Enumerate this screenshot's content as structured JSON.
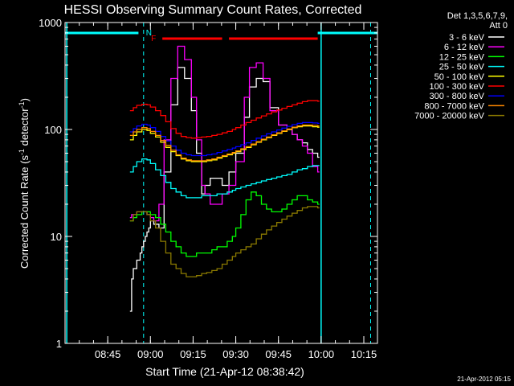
{
  "chart_data": {
    "type": "line",
    "title": "HESSI Observing Summary Count Rates, Corrected",
    "xlabel": "Start Time (21-Apr-12 08:38:42)",
    "ylabel_main": "Corrected Count Rate (s",
    "ylabel_sup1": "-1",
    "ylabel_mid": " detector",
    "ylabel_sup2": "-1",
    "ylabel_end": ")",
    "y_scale": "log",
    "ylim": [
      1,
      1000
    ],
    "xlim_minutes": [
      8.5,
      10.33
    ],
    "x_ticks": [
      {
        "t": 8.75,
        "label": "08:45"
      },
      {
        "t": 9.0,
        "label": "09:00"
      },
      {
        "t": 9.25,
        "label": "09:15"
      },
      {
        "t": 9.5,
        "label": "09:30"
      },
      {
        "t": 9.75,
        "label": "09:45"
      },
      {
        "t": 10.0,
        "label": "10:00"
      },
      {
        "t": 10.25,
        "label": "10:15"
      }
    ],
    "y_ticks": [
      {
        "v": 1,
        "label": "1"
      },
      {
        "v": 10,
        "label": "10"
      },
      {
        "v": 100,
        "label": "100"
      },
      {
        "v": 1000,
        "label": "1000"
      }
    ],
    "legend_header": [
      "Det 1,3,5,6,7,9,",
      "Att 0"
    ],
    "legend_position": "right",
    "series": [
      {
        "name": "3 - 6 keV",
        "color": "#ffffff",
        "t": [
          8.88,
          8.89,
          8.9,
          8.92,
          8.94,
          8.95,
          8.96,
          8.97,
          8.98,
          8.99,
          9.0,
          9.02,
          9.05,
          9.08,
          9.12,
          9.16,
          9.2,
          9.24,
          9.27,
          9.3,
          9.32,
          9.35,
          9.38,
          9.42,
          9.46,
          9.5,
          9.55,
          9.58,
          9.62,
          9.66,
          9.7,
          9.75,
          9.8,
          9.83,
          9.86,
          9.89,
          9.92,
          9.95,
          9.98,
          9.99
        ],
        "v": [
          2,
          4,
          5,
          6,
          7,
          8,
          9,
          10,
          11,
          12,
          14,
          13,
          12,
          40,
          170,
          380,
          300,
          150,
          60,
          25,
          30,
          35,
          35,
          30,
          40,
          60,
          130,
          250,
          300,
          280,
          160,
          110,
          100,
          90,
          80,
          75,
          65,
          60,
          55,
          55
        ]
      },
      {
        "name": "6 - 12 keV",
        "color": "#ff00ff",
        "t": [
          8.88,
          8.89,
          8.9,
          8.92,
          8.94,
          8.96,
          8.98,
          9.0,
          9.02,
          9.05,
          9.08,
          9.12,
          9.16,
          9.2,
          9.24,
          9.27,
          9.3,
          9.32,
          9.35,
          9.38,
          9.42,
          9.46,
          9.5,
          9.55,
          9.58,
          9.62,
          9.66,
          9.7,
          9.75,
          9.8,
          9.83,
          9.86,
          9.89,
          9.92,
          9.95,
          9.98,
          9.99
        ],
        "v": [
          15,
          16,
          16,
          17,
          17,
          17,
          16,
          15,
          14,
          20,
          80,
          300,
          600,
          450,
          200,
          80,
          30,
          25,
          20,
          20,
          25,
          30,
          50,
          200,
          380,
          420,
          300,
          150,
          110,
          100,
          90,
          80,
          70,
          60,
          45,
          40,
          40
        ]
      },
      {
        "name": "12 - 25 keV",
        "color": "#00ff00",
        "t": [
          8.88,
          8.9,
          8.92,
          8.95,
          8.98,
          9.0,
          9.03,
          9.06,
          9.09,
          9.12,
          9.15,
          9.18,
          9.21,
          9.24,
          9.27,
          9.3,
          9.33,
          9.36,
          9.39,
          9.42,
          9.45,
          9.48,
          9.5,
          9.53,
          9.56,
          9.59,
          9.62,
          9.65,
          9.68,
          9.71,
          9.74,
          9.77,
          9.8,
          9.83,
          9.86,
          9.89,
          9.92,
          9.95,
          9.98,
          9.99
        ],
        "v": [
          14,
          15,
          16,
          17,
          17,
          16,
          15,
          13,
          11,
          9,
          8,
          7,
          6.5,
          6.5,
          7,
          7,
          7,
          7.5,
          8,
          8,
          9,
          10,
          12,
          16,
          22,
          26,
          24,
          20,
          18,
          17,
          17,
          18,
          20,
          22,
          24,
          24,
          22,
          21,
          20,
          20
        ]
      },
      {
        "name": "25 - 50 keV",
        "color": "#00ffff",
        "t": [
          8.88,
          8.9,
          8.92,
          8.95,
          8.98,
          9.0,
          9.03,
          9.06,
          9.09,
          9.12,
          9.15,
          9.18,
          9.21,
          9.24,
          9.27,
          9.3,
          9.33,
          9.36,
          9.39,
          9.42,
          9.45,
          9.48,
          9.5,
          9.53,
          9.56,
          9.59,
          9.62,
          9.65,
          9.68,
          9.71,
          9.74,
          9.77,
          9.8,
          9.83,
          9.86,
          9.89,
          9.92,
          9.95,
          9.98,
          9.99
        ],
        "v": [
          40,
          45,
          50,
          53,
          52,
          48,
          42,
          37,
          32,
          28,
          26,
          24,
          23,
          23,
          23,
          24,
          24,
          24,
          25,
          25,
          26,
          27,
          28,
          29,
          30,
          31,
          32,
          33,
          34,
          35,
          36,
          37,
          38,
          40,
          42,
          43,
          45,
          46,
          46,
          46
        ]
      },
      {
        "name": "50 - 100 keV",
        "color": "#ffff00",
        "t": [
          8.88,
          8.9,
          8.92,
          8.95,
          8.98,
          9.0,
          9.03,
          9.06,
          9.09,
          9.12,
          9.15,
          9.18,
          9.21,
          9.24,
          9.27,
          9.3,
          9.33,
          9.36,
          9.39,
          9.42,
          9.45,
          9.48,
          9.5,
          9.53,
          9.56,
          9.59,
          9.62,
          9.65,
          9.68,
          9.71,
          9.74,
          9.77,
          9.8,
          9.83,
          9.86,
          9.89,
          9.92,
          9.95,
          9.98,
          9.99
        ],
        "v": [
          80,
          88,
          95,
          100,
          98,
          92,
          85,
          76,
          68,
          62,
          57,
          53,
          51,
          50,
          50,
          50,
          51,
          52,
          54,
          56,
          58,
          60,
          62,
          65,
          68,
          72,
          76,
          80,
          84,
          88,
          92,
          96,
          100,
          104,
          106,
          108,
          108,
          106,
          105,
          105
        ]
      },
      {
        "name": "100 - 300 keV",
        "color": "#ff0000",
        "t": [
          8.88,
          8.9,
          8.92,
          8.95,
          8.98,
          9.0,
          9.03,
          9.06,
          9.09,
          9.12,
          9.15,
          9.18,
          9.21,
          9.24,
          9.27,
          9.3,
          9.33,
          9.36,
          9.39,
          9.42,
          9.45,
          9.48,
          9.5,
          9.53,
          9.56,
          9.59,
          9.62,
          9.65,
          9.68,
          9.71,
          9.74,
          9.77,
          9.8,
          9.83,
          9.86,
          9.89,
          9.92,
          9.95,
          9.98,
          9.99
        ],
        "v": [
          150,
          160,
          168,
          172,
          170,
          162,
          150,
          135,
          118,
          102,
          92,
          86,
          84,
          83,
          84,
          85,
          86,
          88,
          90,
          93,
          96,
          100,
          104,
          110,
          116,
          122,
          128,
          134,
          140,
          146,
          152,
          158,
          164,
          170,
          176,
          182,
          186,
          186,
          184,
          184
        ]
      },
      {
        "name": "300 - 800 keV",
        "color": "#0000ff",
        "t": [
          8.88,
          8.9,
          8.92,
          8.95,
          8.98,
          9.0,
          9.03,
          9.06,
          9.09,
          9.12,
          9.15,
          9.18,
          9.21,
          9.24,
          9.27,
          9.3,
          9.33,
          9.36,
          9.39,
          9.42,
          9.45,
          9.48,
          9.5,
          9.53,
          9.56,
          9.59,
          9.62,
          9.65,
          9.68,
          9.71,
          9.74,
          9.77,
          9.8,
          9.83,
          9.86,
          9.89,
          9.92,
          9.95,
          9.98,
          9.99
        ],
        "v": [
          95,
          102,
          108,
          112,
          110,
          104,
          96,
          86,
          78,
          70,
          64,
          60,
          58,
          57,
          57,
          57,
          58,
          59,
          61,
          63,
          65,
          67,
          69,
          72,
          75,
          79,
          83,
          87,
          91,
          95,
          99,
          103,
          107,
          111,
          114,
          116,
          116,
          115,
          114,
          114
        ]
      },
      {
        "name": "800 - 7000 keV",
        "color": "#ff8800",
        "t": [
          8.88,
          8.9,
          8.92,
          8.95,
          8.98,
          9.0,
          9.03,
          9.06,
          9.09,
          9.12,
          9.15,
          9.18,
          9.21,
          9.24,
          9.27,
          9.3,
          9.33,
          9.36,
          9.39,
          9.42,
          9.45,
          9.48,
          9.5,
          9.53,
          9.56,
          9.59,
          9.62,
          9.65,
          9.68,
          9.71,
          9.74,
          9.77,
          9.8,
          9.83,
          9.86,
          9.89,
          9.92,
          9.95,
          9.98,
          9.99
        ],
        "v": [
          88,
          95,
          100,
          104,
          102,
          96,
          88,
          79,
          71,
          64,
          58,
          54,
          52,
          51,
          51,
          51,
          52,
          53,
          55,
          57,
          59,
          61,
          63,
          66,
          69,
          73,
          77,
          81,
          85,
          89,
          93,
          97,
          101,
          105,
          108,
          110,
          110,
          109,
          108,
          108
        ]
      },
      {
        "name": "7000 - 20000 keV",
        "color": "#8b7a00",
        "t": [
          8.88,
          8.9,
          8.92,
          8.95,
          8.98,
          9.0,
          9.03,
          9.06,
          9.09,
          9.12,
          9.15,
          9.18,
          9.21,
          9.24,
          9.27,
          9.3,
          9.33,
          9.36,
          9.39,
          9.42,
          9.45,
          9.48,
          9.5,
          9.53,
          9.56,
          9.59,
          9.62,
          9.65,
          9.68,
          9.71,
          9.74,
          9.77,
          9.8,
          9.83,
          9.86,
          9.89,
          9.92,
          9.95,
          9.98,
          9.99
        ],
        "v": [
          14,
          16,
          17,
          17,
          16,
          14,
          12,
          9,
          7,
          5.5,
          5,
          4.5,
          4.2,
          4.2,
          4.3,
          4.5,
          4.6,
          4.8,
          5,
          5.5,
          6,
          6.5,
          7,
          7.5,
          8,
          8.5,
          9.5,
          10.5,
          11.5,
          12.5,
          13.5,
          14.5,
          15.5,
          16.5,
          17.5,
          18.5,
          19,
          19,
          18.5,
          18.5
        ]
      }
    ],
    "annotations": {
      "night_bars": [
        {
          "t0": 8.5,
          "t1": 8.93
        },
        {
          "t0": 9.98,
          "t1": 10.33
        }
      ],
      "night_color": "#00ffff",
      "flare_bars": [
        {
          "t0": 9.07,
          "t1": 9.42
        },
        {
          "t0": 9.46,
          "t1": 9.98
        }
      ],
      "flare_color": "#ff0000",
      "n_label": "N",
      "f_label": "F",
      "dashed_lines_t": [
        8.96,
        10.29
      ],
      "solid_lines_t": [
        8.51,
        10.0
      ]
    },
    "timestamp": "21-Apr-2012 05:15"
  }
}
